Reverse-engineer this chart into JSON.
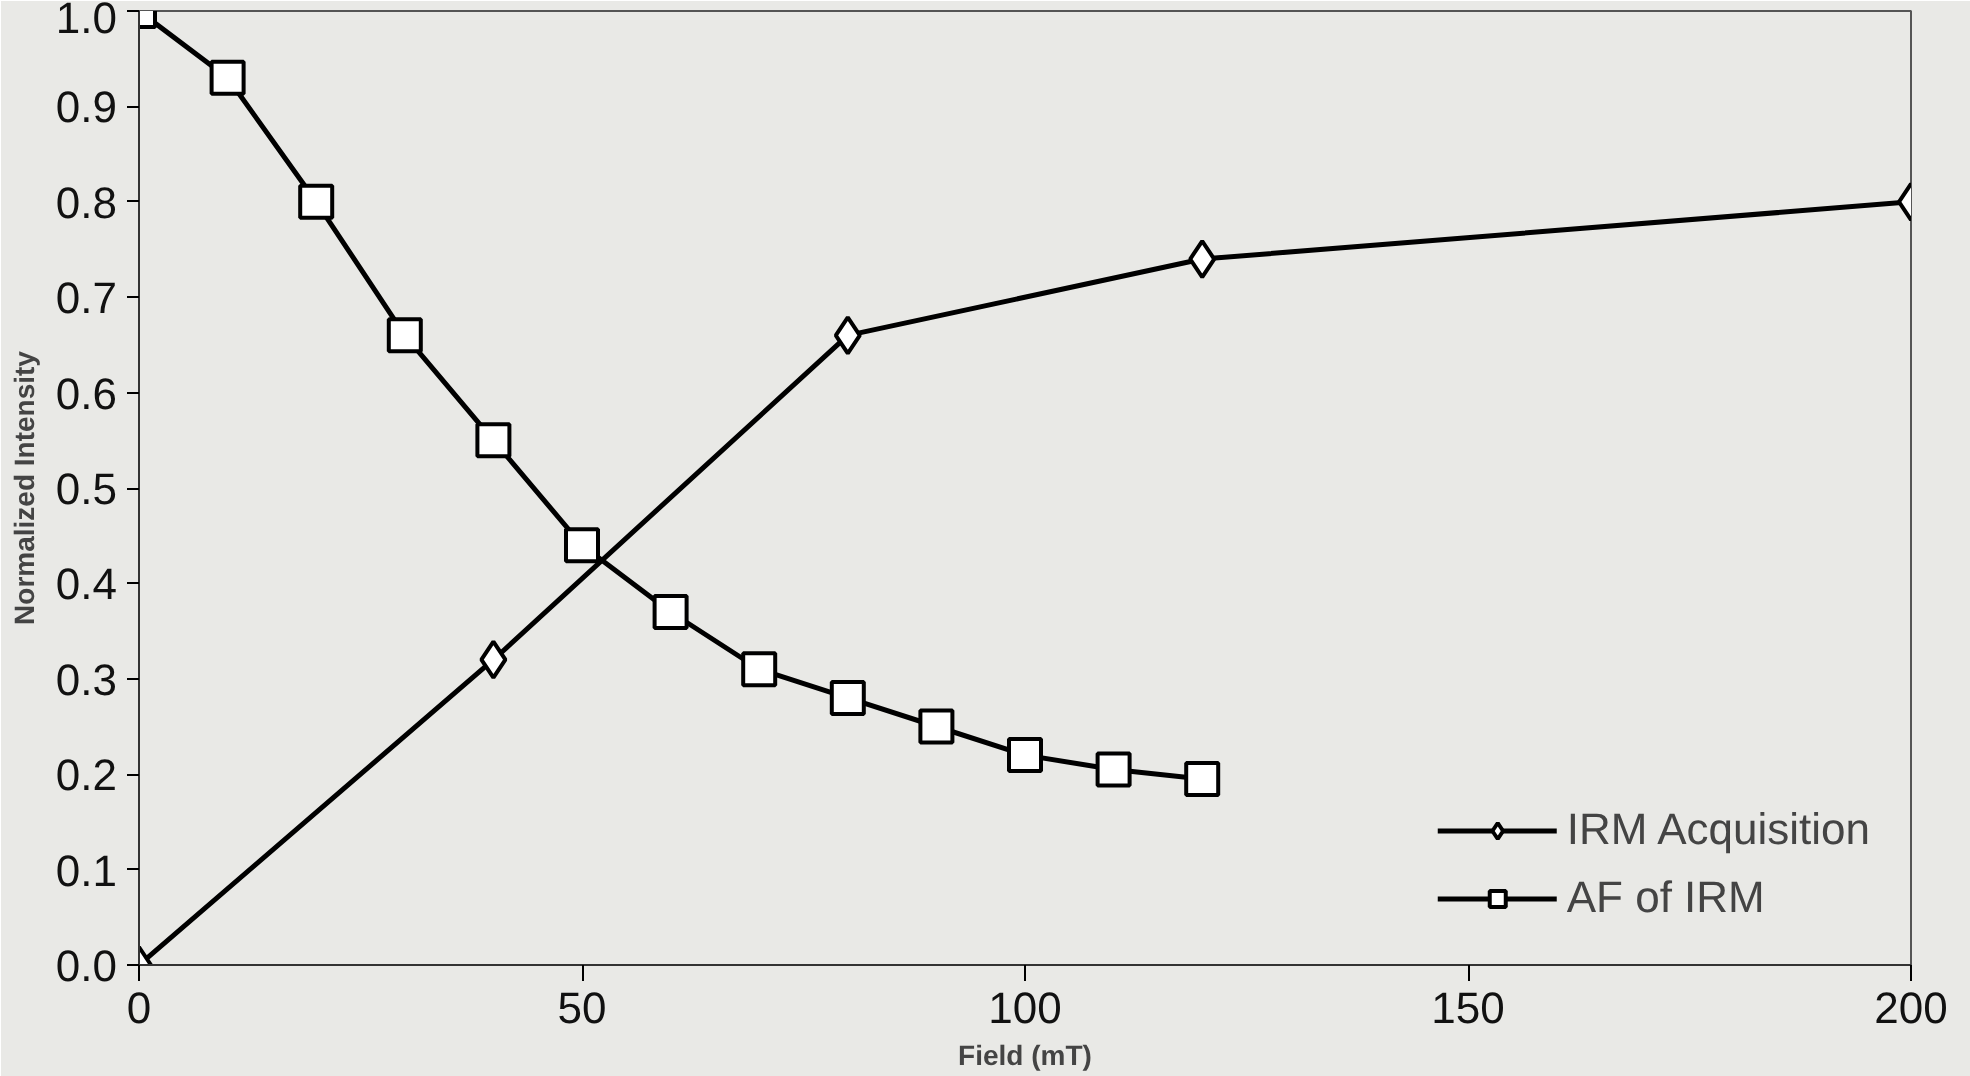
{
  "chart_data": {
    "type": "line",
    "xlabel": "Field (mT)",
    "ylabel": "Normalized Intensity",
    "xlim": [
      0,
      200
    ],
    "ylim": [
      0,
      1
    ],
    "xticks": [
      0,
      50,
      100,
      150,
      200
    ],
    "yticks": [
      {
        "value": 0,
        "label": "0.0"
      },
      0.1,
      0.2,
      0.3,
      0.4,
      0.5,
      0.6,
      0.7,
      0.8,
      0.9,
      {
        "value": 1,
        "label": "1.0"
      }
    ],
    "grid": false,
    "legend": "bottom right",
    "line_style": "solid",
    "series": [
      {
        "name": "IRM Acquisition",
        "color": "#000000",
        "marker": "diamond",
        "x": [
          0,
          40,
          80,
          120,
          200
        ],
        "values": [
          0,
          0.32,
          0.66,
          0.74,
          0.8
        ]
      },
      {
        "name": "AF of IRM",
        "color": "#000000",
        "marker": "square",
        "x": [
          0,
          10,
          20,
          30,
          40,
          50,
          60,
          70,
          80,
          90,
          100,
          110,
          120
        ],
        "values": [
          1.0,
          0.93,
          0.8,
          0.66,
          0.55,
          0.44,
          0.37,
          0.31,
          0.28,
          0.25,
          0.22,
          0.205,
          0.195
        ]
      }
    ]
  }
}
